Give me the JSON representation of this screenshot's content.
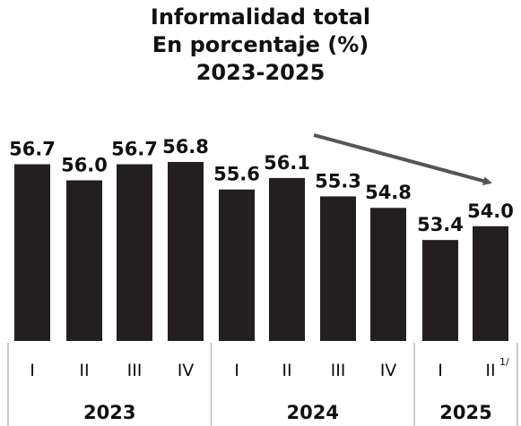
{
  "chart_data": {
    "type": "bar",
    "title": "Informalidad total",
    "subtitle": "En porcentaje (%)",
    "period": "2023-2025",
    "colors": {
      "bar": "#231f20",
      "arrow": "#555555"
    },
    "categories": [
      "I",
      "II",
      "III",
      "IV",
      "I",
      "II",
      "III",
      "IV",
      "I",
      "II"
    ],
    "category_note": "1/",
    "year_groups": [
      {
        "label": "2023",
        "count": 4
      },
      {
        "label": "2024",
        "count": 4
      },
      {
        "label": "2025",
        "count": 2
      }
    ],
    "values": [
      56.7,
      56.0,
      56.7,
      56.8,
      55.6,
      56.1,
      55.3,
      54.8,
      53.4,
      54.0
    ],
    "value_labels": [
      "56.7",
      "56.0",
      "56.7",
      "56.8",
      "55.6",
      "56.1",
      "55.3",
      "54.8",
      "53.4",
      "54.0"
    ],
    "ylim": [
      49,
      57.5
    ],
    "grid": false,
    "annotations": [
      {
        "type": "arrow",
        "from_category_index": 5,
        "to_category_index": 9,
        "meaning": "decreasing trend"
      }
    ]
  }
}
